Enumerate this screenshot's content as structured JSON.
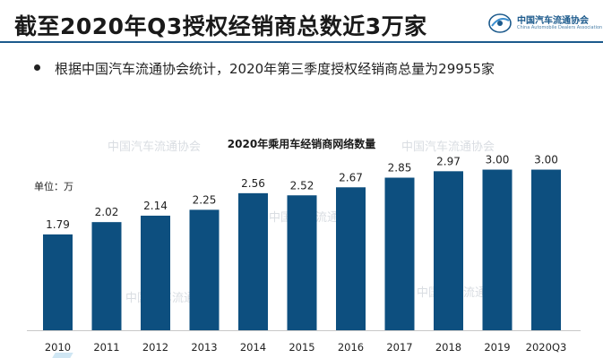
{
  "header": {
    "title": "截至2020年Q3授权经销商总数近3万家",
    "logo_name": "中国汽车流通协会",
    "logo_en": "China Automobile Dealers Association"
  },
  "bullet": {
    "text": "根据中国汽车流通协会统计，2020年第三季度授权经销商总量为29955家"
  },
  "watermark_text": "中国汽车流通协会",
  "colors": {
    "bar": "#0d4f7f",
    "title_rule": "#1c5a8c"
  },
  "chart_data": {
    "type": "bar",
    "title": "2020年乘用车经销商网络数量",
    "unit_label": "单位：万",
    "categories": [
      "2010",
      "2011",
      "2012",
      "2013",
      "2014",
      "2015",
      "2016",
      "2017",
      "2018",
      "2019",
      "2020Q3"
    ],
    "values": [
      1.79,
      2.02,
      2.14,
      2.25,
      2.56,
      2.52,
      2.67,
      2.85,
      2.97,
      3.0,
      3.0
    ],
    "value_labels": [
      "1.79",
      "2.02",
      "2.14",
      "2.25",
      "2.56",
      "2.52",
      "2.67",
      "2.85",
      "2.97",
      "3.00",
      "3.00"
    ],
    "ylim": [
      0,
      3.36
    ],
    "grid": false,
    "legend": "none"
  }
}
